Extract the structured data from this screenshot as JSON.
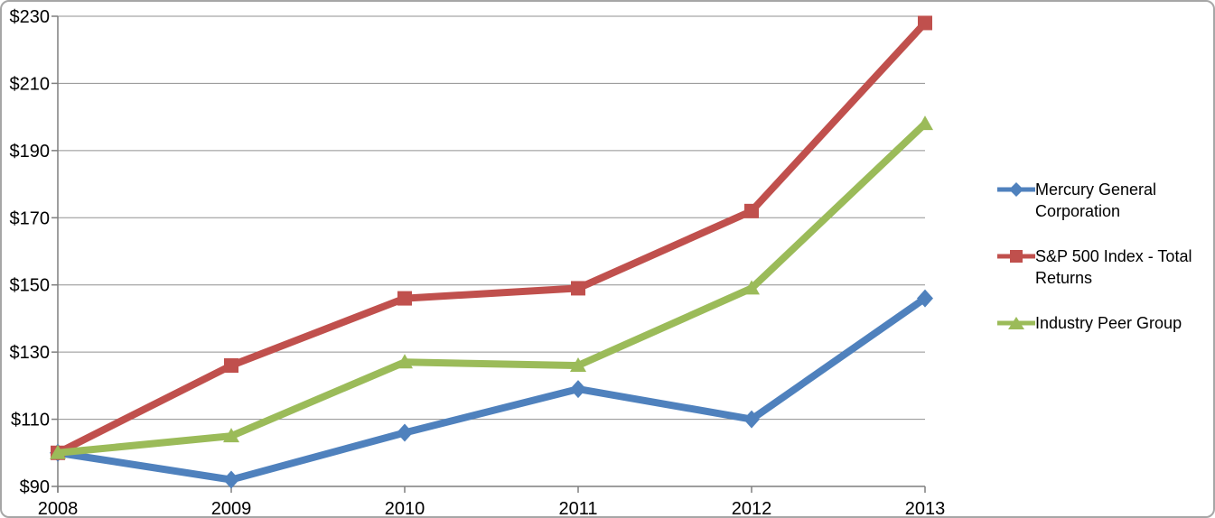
{
  "chart_data": {
    "type": "line",
    "title": "",
    "categories": [
      "2008",
      "2009",
      "2010",
      "2011",
      "2012",
      "2013"
    ],
    "series": [
      {
        "name": "Mercury General Corporation",
        "color": "#4F81BD",
        "marker": "diamond",
        "values": [
          100,
          92,
          106,
          119,
          110,
          146
        ]
      },
      {
        "name": "S&P 500 Index - Total Returns",
        "color": "#C0504D",
        "marker": "square",
        "values": [
          100,
          126,
          146,
          149,
          172,
          228
        ]
      },
      {
        "name": "Industry Peer Group",
        "color": "#9BBB59",
        "marker": "triangle",
        "values": [
          100,
          105,
          127,
          126,
          149,
          198
        ]
      }
    ],
    "y_axis": {
      "min": 90,
      "max": 230,
      "step": 20,
      "tick_prefix": "$",
      "tick_labels": [
        "$90",
        "$110",
        "$130",
        "$150",
        "$170",
        "$190",
        "$210",
        "$230"
      ]
    },
    "grid": true,
    "legend_position": "right",
    "colors": {
      "gridline": "#909090",
      "axis": "#7f7f7f",
      "text": "#000000",
      "frame_border": "#a6a6a6",
      "background": "#ffffff"
    }
  }
}
